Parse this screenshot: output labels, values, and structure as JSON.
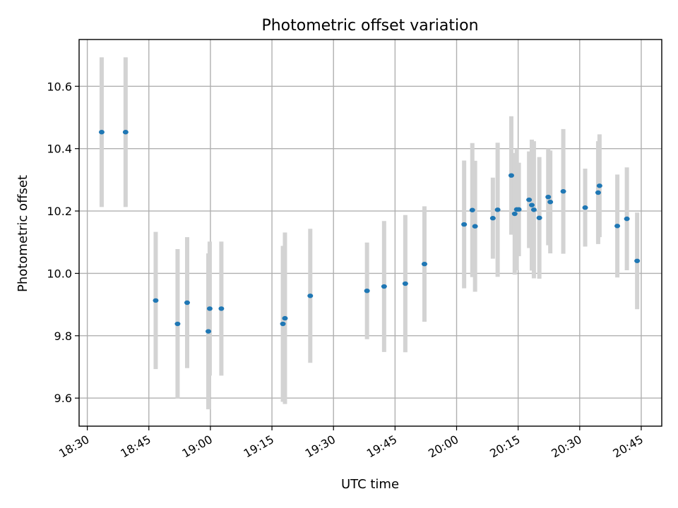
{
  "chart_data": {
    "type": "scatter",
    "title": "Photometric offset variation",
    "xlabel": "UTC time",
    "ylabel": "Photometric offset",
    "grid": true,
    "xlim": [
      "18:28",
      "20:50"
    ],
    "ylim": [
      9.51,
      10.75
    ],
    "x_ticks": [
      "18:30",
      "18:45",
      "19:00",
      "19:15",
      "19:30",
      "19:45",
      "20:00",
      "20:15",
      "20:30",
      "20:45"
    ],
    "y_ticks": [
      "9.6",
      "9.8",
      "10.0",
      "10.2",
      "10.4",
      "10.6"
    ],
    "series": [
      {
        "marker_color": "#1f77b4",
        "errorbar_color": "#d3d3d3",
        "points": [
          {
            "x": "18:33:30",
            "y": 10.453,
            "ylo": 10.213,
            "yhi": 10.693
          },
          {
            "x": "18:39:20",
            "y": 10.453,
            "ylo": 10.213,
            "yhi": 10.693
          },
          {
            "x": "18:46:40",
            "y": 9.913,
            "ylo": 9.693,
            "yhi": 10.133
          },
          {
            "x": "18:52:00",
            "y": 9.838,
            "ylo": 9.598,
            "yhi": 10.078
          },
          {
            "x": "18:54:20",
            "y": 9.906,
            "ylo": 9.696,
            "yhi": 10.116
          },
          {
            "x": "18:59:30",
            "y": 9.814,
            "ylo": 9.564,
            "yhi": 10.064
          },
          {
            "x": "18:59:50",
            "y": 9.887,
            "ylo": 9.672,
            "yhi": 10.102
          },
          {
            "x": "19:02:40",
            "y": 9.887,
            "ylo": 9.672,
            "yhi": 10.102
          },
          {
            "x": "19:17:40",
            "y": 9.838,
            "ylo": 9.588,
            "yhi": 10.088
          },
          {
            "x": "19:18:10",
            "y": 9.856,
            "ylo": 9.581,
            "yhi": 10.131
          },
          {
            "x": "19:24:20",
            "y": 9.928,
            "ylo": 9.713,
            "yhi": 10.143
          },
          {
            "x": "19:38:10",
            "y": 9.944,
            "ylo": 9.789,
            "yhi": 10.099
          },
          {
            "x": "19:42:20",
            "y": 9.958,
            "ylo": 9.748,
            "yhi": 10.168
          },
          {
            "x": "19:47:30",
            "y": 9.967,
            "ylo": 9.747,
            "yhi": 10.187
          },
          {
            "x": "19:52:10",
            "y": 10.03,
            "ylo": 9.845,
            "yhi": 10.215
          },
          {
            "x": "20:01:50",
            "y": 10.157,
            "ylo": 9.952,
            "yhi": 10.362
          },
          {
            "x": "20:03:50",
            "y": 10.203,
            "ylo": 9.988,
            "yhi": 10.418
          },
          {
            "x": "20:04:30",
            "y": 10.151,
            "ylo": 9.941,
            "yhi": 10.361
          },
          {
            "x": "20:08:50",
            "y": 10.177,
            "ylo": 10.047,
            "yhi": 10.307
          },
          {
            "x": "20:10:00",
            "y": 10.204,
            "ylo": 9.989,
            "yhi": 10.419
          },
          {
            "x": "20:13:20",
            "y": 10.314,
            "ylo": 10.124,
            "yhi": 10.504
          },
          {
            "x": "20:14:10",
            "y": 10.191,
            "ylo": 9.996,
            "yhi": 10.386
          },
          {
            "x": "20:14:40",
            "y": 10.205,
            "ylo": 10.01,
            "yhi": 10.4
          },
          {
            "x": "20:15:10",
            "y": 10.205,
            "ylo": 10.055,
            "yhi": 10.355
          },
          {
            "x": "20:17:40",
            "y": 10.236,
            "ylo": 10.081,
            "yhi": 10.391
          },
          {
            "x": "20:18:20",
            "y": 10.219,
            "ylo": 10.009,
            "yhi": 10.429
          },
          {
            "x": "20:18:50",
            "y": 10.204,
            "ylo": 9.984,
            "yhi": 10.424
          },
          {
            "x": "20:20:10",
            "y": 10.178,
            "ylo": 9.983,
            "yhi": 10.373
          },
          {
            "x": "20:22:20",
            "y": 10.245,
            "ylo": 10.09,
            "yhi": 10.4
          },
          {
            "x": "20:22:50",
            "y": 10.229,
            "ylo": 10.064,
            "yhi": 10.394
          },
          {
            "x": "20:26:00",
            "y": 10.263,
            "ylo": 10.063,
            "yhi": 10.463
          },
          {
            "x": "20:31:20",
            "y": 10.211,
            "ylo": 10.086,
            "yhi": 10.336
          },
          {
            "x": "20:34:30",
            "y": 10.259,
            "ylo": 10.094,
            "yhi": 10.424
          },
          {
            "x": "20:34:50",
            "y": 10.281,
            "ylo": 10.116,
            "yhi": 10.446
          },
          {
            "x": "20:39:10",
            "y": 10.152,
            "ylo": 9.987,
            "yhi": 10.317
          },
          {
            "x": "20:41:30",
            "y": 10.175,
            "ylo": 10.01,
            "yhi": 10.34
          },
          {
            "x": "20:44:00",
            "y": 10.04,
            "ylo": 9.885,
            "yhi": 10.195
          }
        ]
      }
    ]
  }
}
